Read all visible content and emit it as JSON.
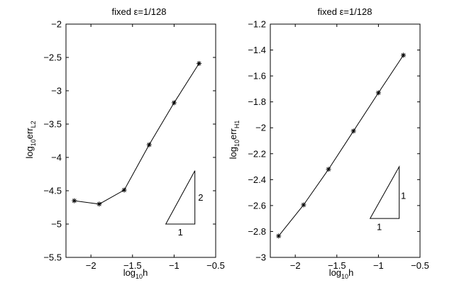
{
  "chart_data": [
    {
      "type": "line",
      "title": "fixed ε=1/128",
      "xlabel": {
        "base": "log",
        "sub": "10",
        "rest": "h",
        "rest_sub": ""
      },
      "ylabel": {
        "base": "log",
        "sub": "10",
        "rest": "err",
        "rest_sub": "L2"
      },
      "xlim": [
        -2.3,
        -0.5
      ],
      "ylim": [
        -5.5,
        -2.0
      ],
      "xticks": [
        -2,
        -1.5,
        -1,
        -0.5
      ],
      "xtick_labels": [
        "−2",
        "−1.5",
        "−1",
        "−0.5"
      ],
      "yticks": [
        -5.5,
        -5,
        -4.5,
        -4,
        -3.5,
        -3,
        -2.5,
        -2
      ],
      "ytick_labels": [
        "−5.5",
        "−5",
        "−4.5",
        "−4",
        "−3.5",
        "−3",
        "−2.5",
        "−2"
      ],
      "grid": false,
      "series": [
        {
          "x": [
            -2.2,
            -1.9,
            -1.6,
            -1.3,
            -1.0,
            -0.7
          ],
          "y": [
            -4.65,
            -4.7,
            -4.49,
            -3.81,
            -3.18,
            -2.59
          ],
          "marker": "*"
        }
      ],
      "slope_triangle": {
        "vertices": [
          [
            -1.1,
            -5.0
          ],
          [
            -0.75,
            -5.0
          ],
          [
            -0.75,
            -4.2
          ]
        ],
        "horizontal_label": "1",
        "vertical_label": "2",
        "horizontal_label_pos": [
          -0.925,
          -5.12
        ],
        "vertical_label_pos": [
          -0.68,
          -4.6
        ]
      }
    },
    {
      "type": "line",
      "title": "fixed ε=1/128",
      "xlabel": {
        "base": "log",
        "sub": "10",
        "rest": "h",
        "rest_sub": ""
      },
      "ylabel": {
        "base": "log",
        "sub": "10",
        "rest": "err",
        "rest_sub": "H1"
      },
      "xlim": [
        -2.3,
        -0.5
      ],
      "ylim": [
        -3.0,
        -1.2
      ],
      "xticks": [
        -2,
        -1.5,
        -1,
        -0.5
      ],
      "xtick_labels": [
        "−2",
        "−1.5",
        "−1",
        "−0.5"
      ],
      "yticks": [
        -3,
        -2.8,
        -2.6,
        -2.4,
        -2.2,
        -2,
        -1.8,
        -1.6,
        -1.4,
        -1.2
      ],
      "ytick_labels": [
        "−3",
        "−2.8",
        "−2.6",
        "−2.4",
        "−2.2",
        "−2",
        "−1.8",
        "−1.6",
        "−1.4",
        "−1.2"
      ],
      "grid": false,
      "series": [
        {
          "x": [
            -2.2,
            -1.9,
            -1.6,
            -1.3,
            -1.0,
            -0.7
          ],
          "y": [
            -2.835,
            -2.595,
            -2.32,
            -2.025,
            -1.73,
            -1.44
          ],
          "marker": "*"
        }
      ],
      "slope_triangle": {
        "vertices": [
          [
            -1.1,
            -2.7
          ],
          [
            -0.75,
            -2.7
          ],
          [
            -0.75,
            -2.3
          ]
        ],
        "horizontal_label": "1",
        "vertical_label": "1",
        "horizontal_label_pos": [
          -0.99,
          -2.765
        ],
        "vertical_label_pos": [
          -0.7,
          -2.525
        ]
      }
    }
  ]
}
